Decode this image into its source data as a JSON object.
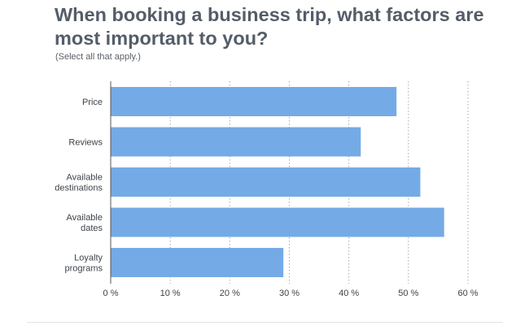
{
  "header": {
    "title": "When booking a business trip, what factors are most important to you?",
    "subtitle": "(Select all that apply.)"
  },
  "colors": {
    "bar": "#74abe6",
    "grid": "#a9a9a9",
    "axis": "#555555",
    "title": "#545d68"
  },
  "chart_data": {
    "type": "bar",
    "orientation": "horizontal",
    "title": "When booking a business trip, what factors are most important to you?",
    "subtitle": "(Select all that apply.)",
    "categories": [
      [
        "Price"
      ],
      [
        "Reviews"
      ],
      [
        "Available",
        "destinations"
      ],
      [
        "Available",
        "dates"
      ],
      [
        "Loyalty",
        "programs"
      ]
    ],
    "values": [
      48,
      42,
      52,
      56,
      29
    ],
    "xlim": [
      0,
      60
    ],
    "xticks": [
      0,
      10,
      20,
      30,
      40,
      50,
      60
    ],
    "tick_suffix": " %",
    "grid": "vertical-dotted",
    "legend": "none"
  }
}
